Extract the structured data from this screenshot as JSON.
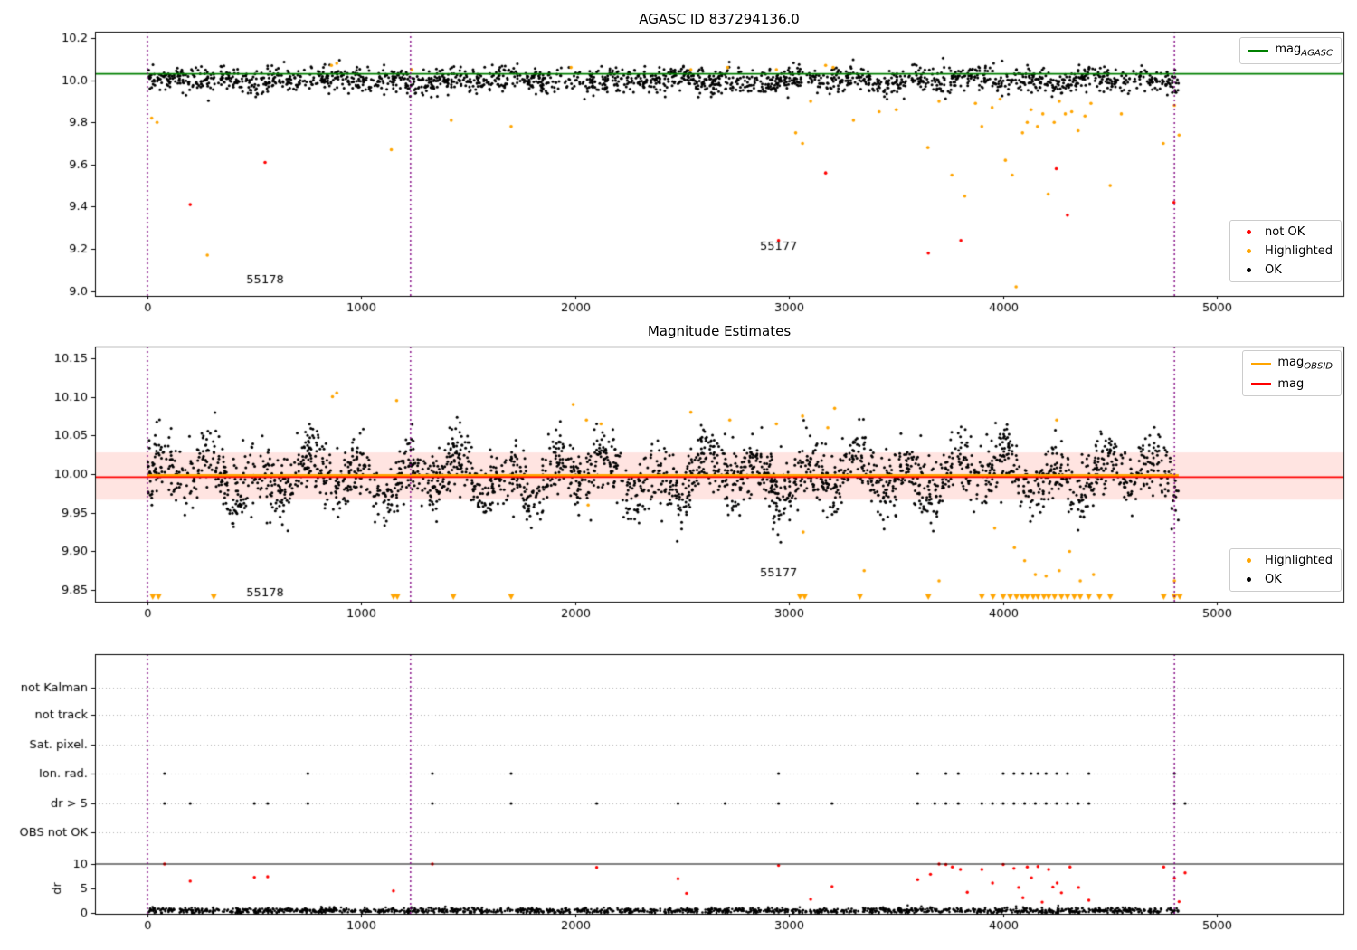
{
  "chart_data": {
    "type": "scatter",
    "background": "#ffffff",
    "plots": {
      "agasc": {
        "title": "AGASC ID 837294136.0",
        "xlim": [
          -245,
          5590
        ],
        "ylim": [
          8.977,
          10.23
        ],
        "xticks": [
          0,
          1000,
          2000,
          3000,
          4000,
          5000
        ],
        "xtick_labels": [
          "0",
          "1000",
          "2000",
          "3000",
          "4000",
          "5000"
        ],
        "yticks": [
          9.0,
          9.2,
          9.4,
          9.6,
          9.8,
          10.0,
          10.2
        ],
        "ytick_labels": [
          "9.0",
          "9.2",
          "9.4",
          "9.6",
          "9.8",
          "10.0",
          "10.2"
        ],
        "mag_agasc_line": 10.03,
        "line_color": "#008000",
        "vlines": [
          0,
          1230,
          4800
        ],
        "vline_color": "#800080",
        "annotations": [
          {
            "text": "55178",
            "x": 550,
            "y": 9.05
          },
          {
            "text": "55177",
            "x": 2950,
            "y": 9.21
          }
        ],
        "ok": {
          "seed": 42,
          "count": 1900,
          "x_range": [
            0,
            4820
          ],
          "mean": 10.0,
          "std": 0.03,
          "wave_amp": 0.012,
          "wave_period": 43,
          "clip": [
            9.9,
            10.105
          ],
          "color": "#000000"
        },
        "highlighted": {
          "color": "#ffa500",
          "points": [
            [
              20,
              9.82
            ],
            [
              45,
              9.8
            ],
            [
              280,
              9.17
            ],
            [
              860,
              10.07
            ],
            [
              885,
              10.08
            ],
            [
              1140,
              9.67
            ],
            [
              1235,
              10.05
            ],
            [
              1420,
              9.81
            ],
            [
              1700,
              9.78
            ],
            [
              1980,
              10.06
            ],
            [
              2540,
              10.05
            ],
            [
              2712,
              10.06
            ],
            [
              2940,
              10.05
            ],
            [
              3030,
              9.75
            ],
            [
              3062,
              9.7
            ],
            [
              3100,
              9.9
            ],
            [
              3170,
              10.07
            ],
            [
              3205,
              10.06
            ],
            [
              3300,
              9.81
            ],
            [
              3420,
              9.85
            ],
            [
              3500,
              9.86
            ],
            [
              3648,
              9.68
            ],
            [
              3700,
              9.9
            ],
            [
              3760,
              9.55
            ],
            [
              3820,
              9.45
            ],
            [
              3870,
              9.89
            ],
            [
              3900,
              9.78
            ],
            [
              3948,
              9.87
            ],
            [
              3985,
              9.91
            ],
            [
              4010,
              9.62
            ],
            [
              4042,
              9.55
            ],
            [
              4060,
              9.02
            ],
            [
              4090,
              9.75
            ],
            [
              4112,
              9.8
            ],
            [
              4130,
              9.86
            ],
            [
              4160,
              9.78
            ],
            [
              4185,
              9.84
            ],
            [
              4210,
              9.46
            ],
            [
              4238,
              9.8
            ],
            [
              4262,
              9.9
            ],
            [
              4290,
              9.84
            ],
            [
              4320,
              9.85
            ],
            [
              4350,
              9.76
            ],
            [
              4382,
              9.83
            ],
            [
              4410,
              9.89
            ],
            [
              4500,
              9.5
            ],
            [
              4552,
              9.84
            ],
            [
              4748,
              9.7
            ],
            [
              4800,
              9.88
            ],
            [
              4822,
              9.74
            ]
          ]
        },
        "not_ok": {
          "color": "#ff0000",
          "points": [
            [
              200,
              9.41
            ],
            [
              550,
              9.61
            ],
            [
              2950,
              9.24
            ],
            [
              3170,
              9.56
            ],
            [
              3650,
              9.18
            ],
            [
              3802,
              9.24
            ],
            [
              4248,
              9.58
            ],
            [
              4300,
              9.36
            ],
            [
              4798,
              9.42
            ]
          ]
        },
        "legends": [
          {
            "items": [
              {
                "marker": "line",
                "color": "#008000",
                "label": "mag",
                "sub": "AGASC"
              }
            ]
          },
          {
            "items": [
              {
                "marker": "dot",
                "color": "#ff0000",
                "label": "not OK"
              },
              {
                "marker": "dot",
                "color": "#ffa500",
                "label": "Highlighted"
              },
              {
                "marker": "dot",
                "color": "#000000",
                "label": "OK"
              }
            ]
          }
        ]
      },
      "magnitudes": {
        "title": "Magnitude Estimates",
        "xlim": [
          -245,
          5590
        ],
        "ylim": [
          9.835,
          10.165
        ],
        "xticks": [
          0,
          1000,
          2000,
          3000,
          4000,
          5000
        ],
        "xtick_labels": [
          "0",
          "1000",
          "2000",
          "3000",
          "4000",
          "5000"
        ],
        "yticks": [
          9.85,
          9.9,
          9.95,
          10.0,
          10.05,
          10.1,
          10.15
        ],
        "ytick_labels": [
          "9.85",
          "9.90",
          "9.95",
          "10.00",
          "10.05",
          "10.10",
          "10.15"
        ],
        "mag_line": 9.996,
        "mag_line_color": "#ff0000",
        "mag_obsid_line": 9.998,
        "mag_obsid_color": "#ffa500",
        "band": [
          9.967,
          10.028
        ],
        "band_color": "rgba(255,90,70,0.16)",
        "vlines": [
          0,
          1230,
          4800
        ],
        "vline_color": "#800080",
        "annotations": [
          {
            "text": "55178",
            "x": 550,
            "y": 9.846
          },
          {
            "text": "55177",
            "x": 2950,
            "y": 9.872
          }
        ],
        "ok": {
          "seed": 7,
          "count": 2600,
          "x_range": [
            0,
            4820
          ],
          "mean": 9.997,
          "std": 0.02,
          "wave_amp": 0.02,
          "wave_period": 37,
          "clip": [
            9.912,
            10.088
          ],
          "color": "#000000"
        },
        "highlighted": {
          "color": "#ffa500",
          "points": [
            [
              865,
              10.1
            ],
            [
              885,
              10.105
            ],
            [
              1165,
              10.095
            ],
            [
              1990,
              10.09
            ],
            [
              2052,
              10.07
            ],
            [
              2120,
              10.065
            ],
            [
              2540,
              10.08
            ],
            [
              2722,
              10.07
            ],
            [
              2940,
              10.065
            ],
            [
              3062,
              10.075
            ],
            [
              3180,
              10.06
            ],
            [
              3212,
              10.085
            ],
            [
              4250,
              10.07
            ],
            [
              3350,
              9.875
            ],
            [
              3700,
              9.862
            ],
            [
              3960,
              9.93
            ],
            [
              4052,
              9.905
            ],
            [
              4100,
              9.888
            ],
            [
              4150,
              9.87
            ],
            [
              4200,
              9.868
            ],
            [
              4262,
              9.875
            ],
            [
              4310,
              9.9
            ],
            [
              4360,
              9.862
            ],
            [
              4422,
              9.87
            ],
            [
              4800,
              9.862
            ],
            [
              2060,
              9.96
            ],
            [
              3065,
              9.925
            ]
          ]
        },
        "clipped_low": {
          "color": "#ffa500",
          "y": 9.8415,
          "x": [
            25,
            52,
            310,
            1150,
            1168,
            1430,
            1700,
            3050,
            3072,
            3330,
            3650,
            3900,
            3952,
            4000,
            4032,
            4062,
            4090,
            4112,
            4140,
            4162,
            4190,
            4212,
            4240,
            4272,
            4300,
            4332,
            4360,
            4400,
            4450,
            4500,
            4750,
            4800,
            4825
          ]
        },
        "legends": [
          {
            "items": [
              {
                "marker": "line",
                "color": "#ffa500",
                "label": "mag",
                "sub": "OBSID"
              },
              {
                "marker": "line",
                "color": "#ff0000",
                "label": "mag"
              }
            ]
          },
          {
            "items": [
              {
                "marker": "dot",
                "color": "#ffa500",
                "label": "Highlighted"
              },
              {
                "marker": "dot",
                "color": "#000000",
                "label": "OK"
              }
            ]
          }
        ]
      },
      "flags": {
        "categories": [
          "not Kalman",
          "not track",
          "Sat. pixel.",
          "Ion. rad.",
          "dr > 5",
          "OBS not OK"
        ],
        "xlim": [
          -245,
          5590
        ],
        "xticks": [
          0,
          1000,
          2000,
          3000,
          4000,
          5000
        ],
        "xtick_labels": [
          "0",
          "1000",
          "2000",
          "3000",
          "4000",
          "5000"
        ],
        "dr_axis_label": "dr",
        "dr_ticks": [
          0,
          5,
          10
        ],
        "dr_tick_labels": [
          "0",
          "5",
          "10"
        ],
        "dr_hline": 10,
        "vlines": [
          0,
          1230,
          4800
        ],
        "vline_color": "#800080",
        "ion_rad_x": [
          80,
          750,
          1332,
          1700,
          2950,
          3600,
          3732,
          3790,
          4000,
          4050,
          4092,
          4130,
          4162,
          4200,
          4250,
          4300,
          4400,
          4800
        ],
        "dr_gt5_x": [
          80,
          200,
          500,
          562,
          750,
          1332,
          1700,
          2100,
          2480,
          2700,
          2950,
          3200,
          3600,
          3680,
          3732,
          3790,
          3900,
          3950,
          4000,
          4050,
          4100,
          4150,
          4200,
          4250,
          4300,
          4350,
          4400,
          4800,
          4850
        ],
        "dr_red": {
          "color": "#ff0000",
          "points": [
            [
              80,
              10
            ],
            [
              200,
              6.5
            ],
            [
              500,
              7.3
            ],
            [
              562,
              7.4
            ],
            [
              1150,
              4.5
            ],
            [
              1332,
              10
            ],
            [
              2100,
              9.3
            ],
            [
              2480,
              7
            ],
            [
              2520,
              4
            ],
            [
              2950,
              9.7
            ],
            [
              3100,
              2.8
            ],
            [
              3200,
              5.4
            ],
            [
              3600,
              6.8
            ],
            [
              3660,
              7.9
            ],
            [
              3700,
              10
            ],
            [
              3732,
              9.9
            ],
            [
              3762,
              9.4
            ],
            [
              3800,
              8.9
            ],
            [
              3832,
              4.2
            ],
            [
              3900,
              8.9
            ],
            [
              3950,
              6.1
            ],
            [
              4000,
              9.9
            ],
            [
              4050,
              9.1
            ],
            [
              4072,
              5.2
            ],
            [
              4092,
              3.1
            ],
            [
              4112,
              9.4
            ],
            [
              4132,
              7.2
            ],
            [
              4162,
              9.5
            ],
            [
              4182,
              2.2
            ],
            [
              4212,
              8.9
            ],
            [
              4232,
              5.3
            ],
            [
              4252,
              6.1
            ],
            [
              4272,
              4.1
            ],
            [
              4312,
              9.4
            ],
            [
              4352,
              5.2
            ],
            [
              4400,
              2.6
            ],
            [
              4750,
              9.4
            ],
            [
              4800,
              7.1
            ],
            [
              4822,
              2.3
            ],
            [
              4850,
              8.2
            ]
          ]
        },
        "dr_ok": {
          "seed": 11,
          "count": 1500,
          "x_range": [
            0,
            4820
          ],
          "mean": 0.45,
          "std": 0.3,
          "clip": [
            0.03,
            1.9
          ],
          "color": "#000000"
        }
      }
    }
  }
}
